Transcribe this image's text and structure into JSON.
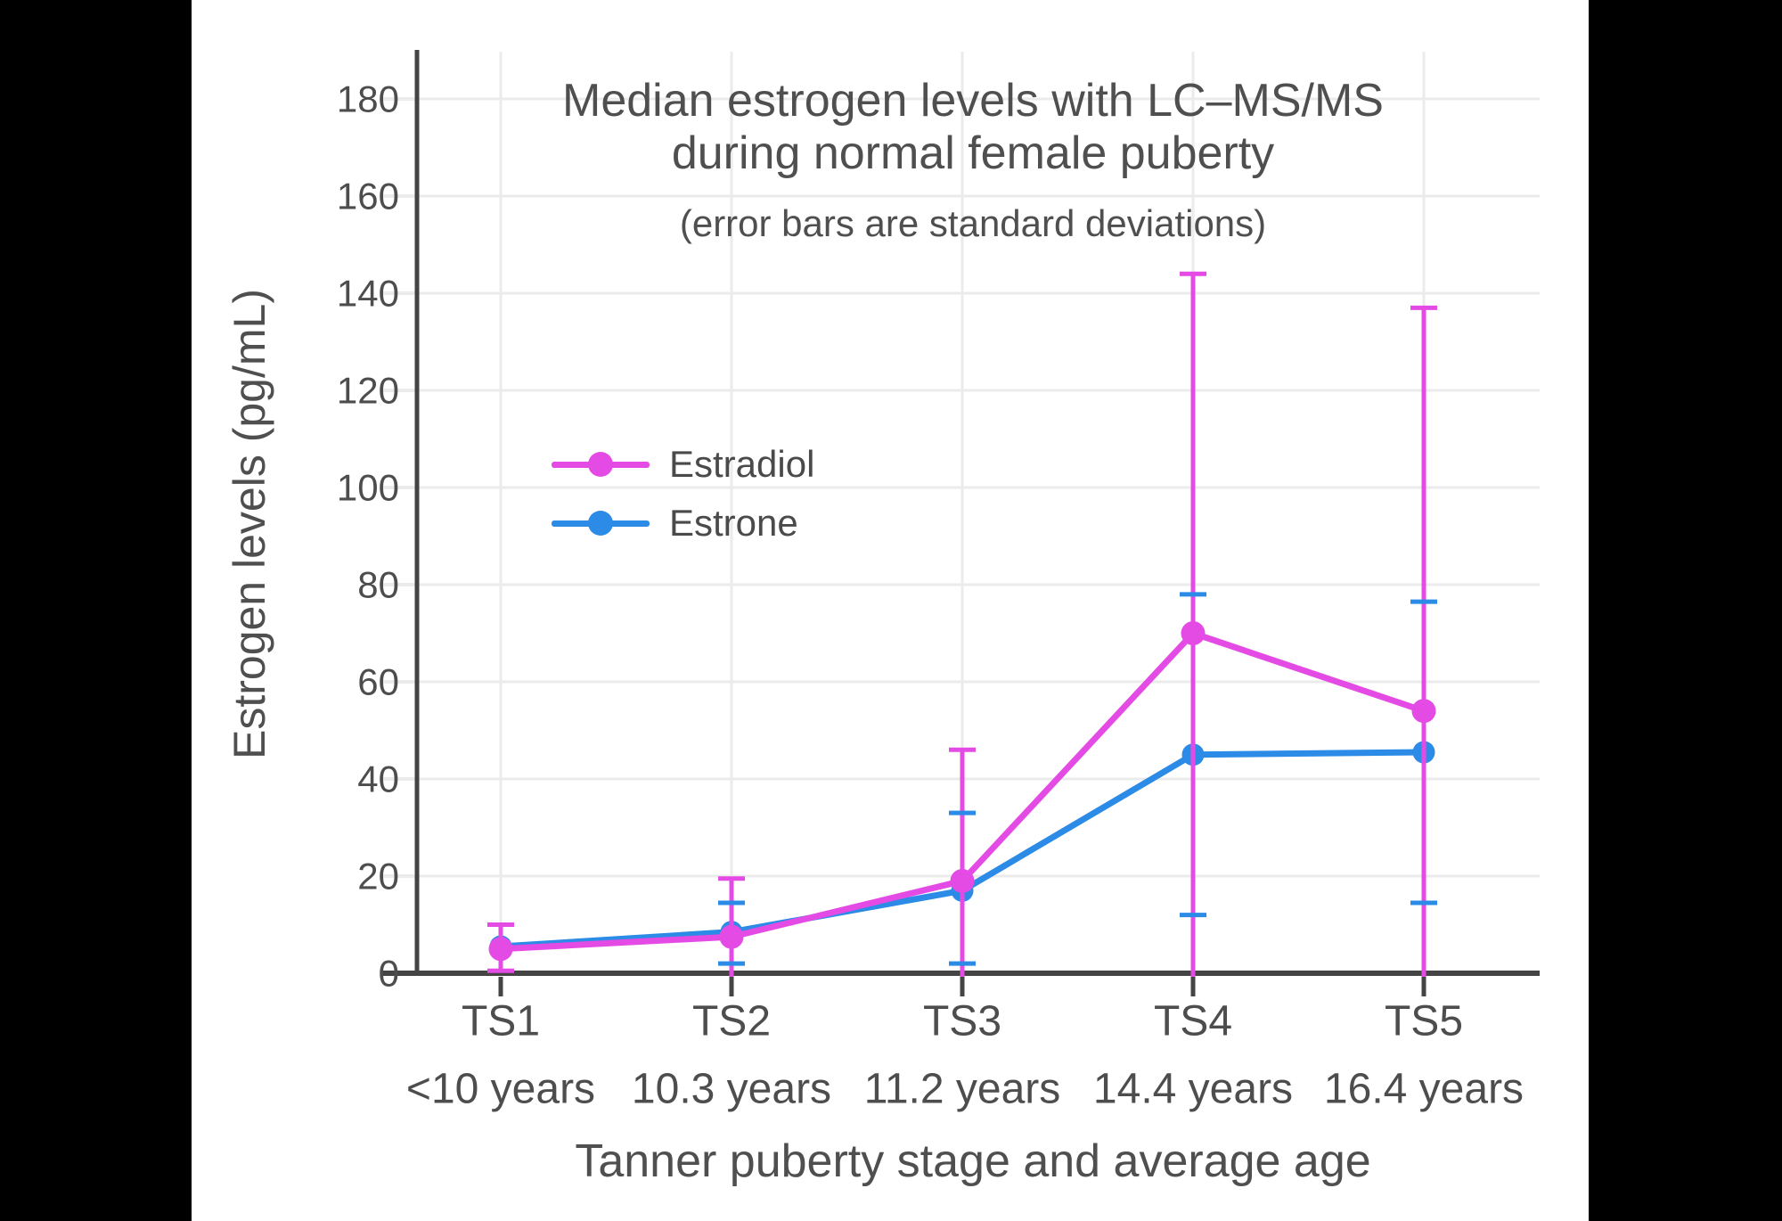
{
  "page": {
    "background": "#000000",
    "canvas_background": "#ffffff"
  },
  "chart": {
    "title_line1": "Median estrogen levels with LC–MS/MS",
    "title_line2": "during normal female puberty",
    "subtitle": "(error bars are standard deviations)",
    "xlabel": "Tanner puberty stage and average age",
    "ylabel": "Estrogen levels (pg/mL)"
  },
  "chart_data": {
    "type": "line",
    "title": "Median estrogen levels with LC–MS/MS during normal female puberty",
    "subtitle": "(error bars are standard deviations)",
    "xlabel": "Tanner puberty stage and average age",
    "ylabel": "Estrogen levels (pg/mL)",
    "categories": [
      "TS1",
      "TS2",
      "TS3",
      "TS4",
      "TS5"
    ],
    "category_ages": [
      "<10 years",
      "10.3 years",
      "11.2 years",
      "14.4 years",
      "16.4 years"
    ],
    "y_ticks": [
      0,
      20,
      40,
      60,
      80,
      100,
      120,
      140,
      160,
      180
    ],
    "ylim": [
      0,
      190
    ],
    "grid": true,
    "legend_position": "inside-upper-left",
    "error_bars": "standard deviations",
    "series": [
      {
        "name": "Estradiol",
        "color": "#e44be4",
        "values": [
          5,
          7.5,
          19,
          70,
          54
        ],
        "err_upper": [
          10,
          19.5,
          46,
          144,
          137
        ],
        "err_lower": [
          0.5,
          null,
          null,
          null,
          null
        ],
        "error_style": "line-with-caps"
      },
      {
        "name": "Estrone",
        "color": "#2b8be6",
        "values": [
          5.5,
          8.5,
          17,
          45,
          45.5
        ],
        "err_upper": [
          null,
          14.5,
          33,
          78,
          76.5
        ],
        "err_lower": [
          null,
          2,
          2,
          12,
          14.5
        ],
        "error_style": "caps-only"
      }
    ]
  },
  "colors": {
    "axis": "#444444",
    "tick_text": "#4d4d4d",
    "grid": "#ebebeb"
  }
}
